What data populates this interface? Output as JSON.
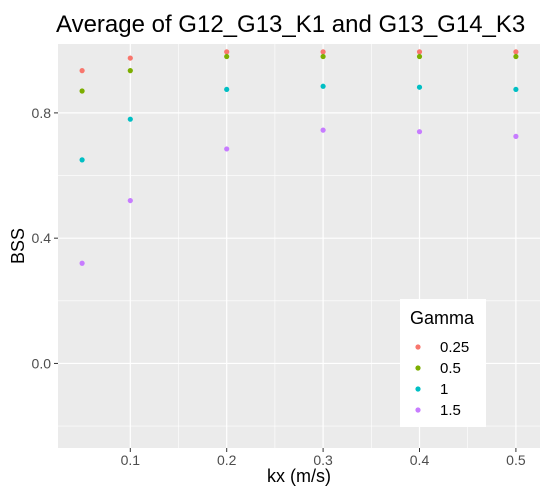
{
  "chart_data": {
    "type": "scatter",
    "title": "Average of G12_G13_K1 and G13_G14_K3",
    "xlabel": "kx (m/s)",
    "ylabel": "BSS",
    "x": [
      0.05,
      0.1,
      0.2,
      0.3,
      0.4,
      0.5
    ],
    "xlim": [
      0.025,
      0.525
    ],
    "ylim": [
      -0.27,
      1.02
    ],
    "x_ticks": [
      0.1,
      0.2,
      0.3,
      0.4,
      0.5
    ],
    "x_tick_labels": [
      "0.1",
      "0.2",
      "0.3",
      "0.4",
      "0.5"
    ],
    "y_ticks": [
      0.0,
      0.4,
      0.8
    ],
    "y_tick_labels": [
      "0.0",
      "0.4",
      "0.8"
    ],
    "grid": true,
    "legend": {
      "title": "Gamma",
      "placement": "bottom-right inside"
    },
    "series": [
      {
        "name": "0.25",
        "color": "#F8766D",
        "values": [
          0.935,
          0.975,
          0.995,
          0.995,
          0.995,
          0.995
        ]
      },
      {
        "name": "0.5",
        "color": "#7CAE00",
        "values": [
          0.87,
          0.935,
          0.98,
          0.98,
          0.98,
          0.98
        ]
      },
      {
        "name": "1",
        "color": "#00BFC4",
        "values": [
          0.65,
          0.78,
          0.875,
          0.885,
          0.882,
          0.875
        ]
      },
      {
        "name": "1.5",
        "color": "#C77CFF",
        "values": [
          0.32,
          0.52,
          0.685,
          0.745,
          0.74,
          0.725
        ]
      }
    ]
  }
}
